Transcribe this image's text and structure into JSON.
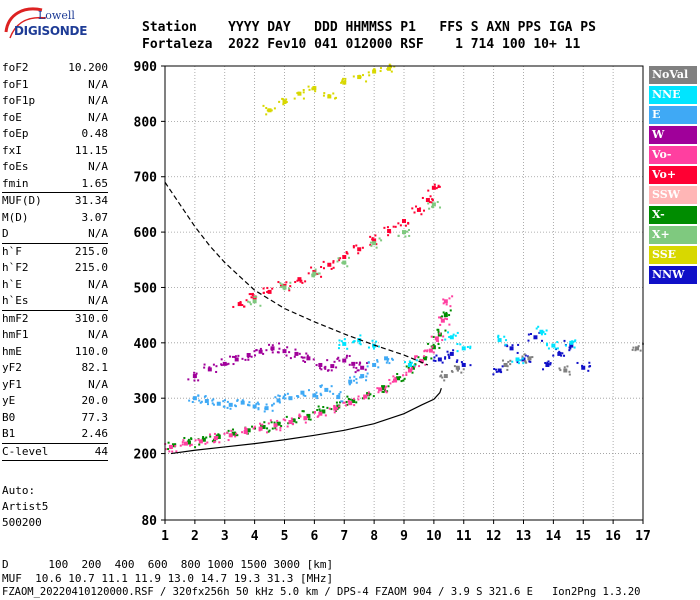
{
  "logo": {
    "line1": "Lowell",
    "line2": "DIGISONDE"
  },
  "header": {
    "row1": "Station    YYYY DAY   DDD HHMMSS P1   FFS S AXN PPS IGA PS",
    "row2": "Fortaleza  2022 Fev10 041 012000 RSF    1 714 100 10+ 11"
  },
  "params": [
    {
      "label": "foF2",
      "value": "10.200"
    },
    {
      "label": "foF1",
      "value": "N/A"
    },
    {
      "label": "foF1p",
      "value": "N/A"
    },
    {
      "label": "foE",
      "value": "N/A"
    },
    {
      "label": "foEp",
      "value": "0.48"
    },
    {
      "label": "fxI",
      "value": "11.15"
    },
    {
      "label": "foEs",
      "value": "N/A"
    },
    {
      "label": "fmin",
      "value": "1.65"
    },
    {
      "sep": true
    },
    {
      "label": "MUF(D)",
      "value": "31.34"
    },
    {
      "label": "M(D)",
      "value": "3.07"
    },
    {
      "label": "D",
      "value": "N/A"
    },
    {
      "sep": true
    },
    {
      "label": "h`F",
      "value": "215.0"
    },
    {
      "label": "h`F2",
      "value": "215.0"
    },
    {
      "label": "h`E",
      "value": "N/A"
    },
    {
      "label": "h`Es",
      "value": "N/A"
    },
    {
      "sep": true
    },
    {
      "label": "hmF2",
      "value": "310.0"
    },
    {
      "label": "hmF1",
      "value": "N/A"
    },
    {
      "label": "hmE",
      "value": "110.0"
    },
    {
      "label": "yF2",
      "value": "82.1"
    },
    {
      "label": "yF1",
      "value": "N/A"
    },
    {
      "label": "yE",
      "value": "20.0"
    },
    {
      "label": "B0",
      "value": "77.3"
    },
    {
      "label": "B1",
      "value": "2.46"
    },
    {
      "sep": true
    },
    {
      "label": "C-level",
      "value": "44"
    },
    {
      "sep": true
    }
  ],
  "auto": {
    "line1": "Auto:",
    "line2": "Artist5",
    "line3": "500200"
  },
  "legend": [
    {
      "label": "NoVal",
      "color": "#808080"
    },
    {
      "label": "NNE",
      "color": "#00e5ff"
    },
    {
      "label": "E",
      "color": "#3fa9f5"
    },
    {
      "label": "W",
      "color": "#a0009a"
    },
    {
      "label": "Vo-",
      "color": "#ff3fa0"
    },
    {
      "label": "Vo+",
      "color": "#ff0033"
    },
    {
      "label": "SSW",
      "color": "#ffb6b6"
    },
    {
      "label": "X-",
      "color": "#008c00"
    },
    {
      "label": "X+",
      "color": "#7fc97f"
    },
    {
      "label": "SSE",
      "color": "#d8d800"
    },
    {
      "label": "NNW",
      "color": "#1010c8"
    }
  ],
  "footer": {
    "line1": "D      100  200  400  600  800 1000 1500 3000 [km]",
    "line2": "MUF  10.6 10.7 11.1 11.9 13.0 14.7 19.3 31.3 [MHz]",
    "line3": "FZAOM_20220410120000.RSF / 320fx256h 50 kHz 5.0 km / DPS-4 FZAOM 904 / 3.9 S 321.6 E   Ion2Png 1.3.20"
  },
  "chart_data": {
    "type": "scatter",
    "xlim": [
      1,
      17
    ],
    "ylim": [
      80,
      900
    ],
    "x_ticks": [
      1,
      2,
      3,
      4,
      5,
      6,
      7,
      8,
      9,
      10,
      11,
      12,
      13,
      14,
      15,
      16,
      17
    ],
    "y_ticks": [
      80,
      200,
      300,
      400,
      500,
      600,
      700,
      800,
      900
    ],
    "grid": true,
    "legend_position": "right",
    "series": [
      {
        "name": "X-",
        "color": "#008c00",
        "x": [
          1.3,
          1.8,
          2.3,
          2.8,
          3.3,
          3.8,
          4.3,
          4.8,
          5.3,
          5.8,
          6.3,
          6.8,
          7.3,
          7.8,
          8.3,
          8.8,
          9.3,
          9.7,
          10.0,
          10.2,
          10.4
        ],
        "y": [
          215,
          220,
          225,
          230,
          236,
          242,
          248,
          254,
          260,
          268,
          276,
          285,
          295,
          307,
          320,
          336,
          355,
          372,
          392,
          415,
          450
        ]
      },
      {
        "name": "Vo-",
        "color": "#ff3fa0",
        "x": [
          1.2,
          1.7,
          2.2,
          2.7,
          3.2,
          3.7,
          4.2,
          4.7,
          5.2,
          5.7,
          6.2,
          6.7,
          7.2,
          7.7,
          8.2,
          8.7,
          9.2,
          9.6,
          9.9,
          10.1,
          10.3,
          10.4
        ],
        "y": [
          212,
          218,
          222,
          228,
          233,
          239,
          245,
          251,
          257,
          264,
          272,
          281,
          291,
          303,
          316,
          332,
          350,
          367,
          386,
          408,
          440,
          475
        ]
      },
      {
        "name": "Vo+",
        "color": "#ff0033",
        "x": [
          3.5,
          4.0,
          4.5,
          5.0,
          5.5,
          6.0,
          6.5,
          7.0,
          7.5,
          8.0,
          8.5,
          9.0,
          9.5,
          9.8,
          10.0
        ],
        "y": [
          470,
          482,
          492,
          503,
          515,
          528,
          541,
          555,
          569,
          585,
          602,
          620,
          640,
          658,
          680
        ]
      },
      {
        "name": "W",
        "color": "#a0009a",
        "x": [
          2.0,
          2.5,
          3.0,
          3.4,
          3.8,
          4.2,
          4.6,
          5.0,
          5.4,
          5.8,
          6.2,
          6.6,
          7.0,
          7.3,
          7.6
        ],
        "y": [
          340,
          352,
          362,
          370,
          378,
          384,
          390,
          385,
          380,
          372,
          360,
          358,
          368,
          362,
          355
        ]
      },
      {
        "name": "E",
        "color": "#3fa9f5",
        "x": [
          2.0,
          2.4,
          2.8,
          3.2,
          3.6,
          4.0,
          4.4,
          4.8,
          5.2,
          5.6,
          6.0,
          6.4,
          6.8,
          7.2,
          7.6,
          8.0,
          8.4
        ],
        "y": [
          300,
          295,
          290,
          288,
          292,
          285,
          282,
          296,
          300,
          310,
          305,
          315,
          302,
          330,
          340,
          360,
          372
        ]
      },
      {
        "name": "NNW",
        "color": "#1010c8",
        "x": [
          10.2,
          10.6,
          11.0,
          12.2,
          12.6,
          13.0,
          13.4,
          13.8,
          14.2,
          14.6,
          15.0
        ],
        "y": [
          370,
          380,
          360,
          350,
          390,
          370,
          410,
          360,
          380,
          395,
          355
        ]
      },
      {
        "name": "SSE",
        "color": "#d8d800",
        "x": [
          4.5,
          5.0,
          5.5,
          6.0,
          6.5,
          7.0,
          7.5,
          8.0,
          8.5
        ],
        "y": [
          820,
          835,
          850,
          860,
          845,
          870,
          880,
          890,
          895
        ]
      },
      {
        "name": "NNE",
        "color": "#00e5ff",
        "x": [
          7.0,
          7.5,
          8.0,
          9.2,
          10.6,
          11.0,
          12.2,
          12.8,
          13.6,
          14.0,
          14.6
        ],
        "y": [
          398,
          405,
          395,
          360,
          410,
          390,
          405,
          370,
          420,
          395,
          400
        ]
      },
      {
        "name": "X+",
        "color": "#7fc97f",
        "x": [
          4.0,
          5.0,
          6.0,
          7.0,
          8.0,
          9.0,
          10.0
        ],
        "y": [
          475,
          500,
          525,
          545,
          580,
          600,
          650
        ]
      },
      {
        "name": "NoVal",
        "color": "#808080",
        "x": [
          10.4,
          10.8,
          12.4,
          13.2,
          14.4,
          16.8
        ],
        "y": [
          340,
          355,
          360,
          372,
          350,
          390
        ]
      }
    ],
    "profile_lines": [
      {
        "style": "solid",
        "color": "#000000",
        "x": [
          1.2,
          2.0,
          3.0,
          4.0,
          5.0,
          6.0,
          7.0,
          8.0,
          9.0,
          9.6,
          10.0,
          10.2,
          10.25
        ],
        "y": [
          200,
          206,
          212,
          218,
          225,
          233,
          242,
          254,
          272,
          288,
          298,
          310,
          318
        ]
      },
      {
        "style": "dashed",
        "color": "#000000",
        "x": [
          1.0,
          1.5,
          2.0,
          2.5,
          3.0,
          3.5,
          4.0,
          5.0,
          6.0,
          7.0,
          8.0,
          9.0,
          9.8
        ],
        "y": [
          690,
          650,
          610,
          575,
          545,
          520,
          495,
          462,
          438,
          416,
          396,
          378,
          360
        ]
      }
    ]
  }
}
